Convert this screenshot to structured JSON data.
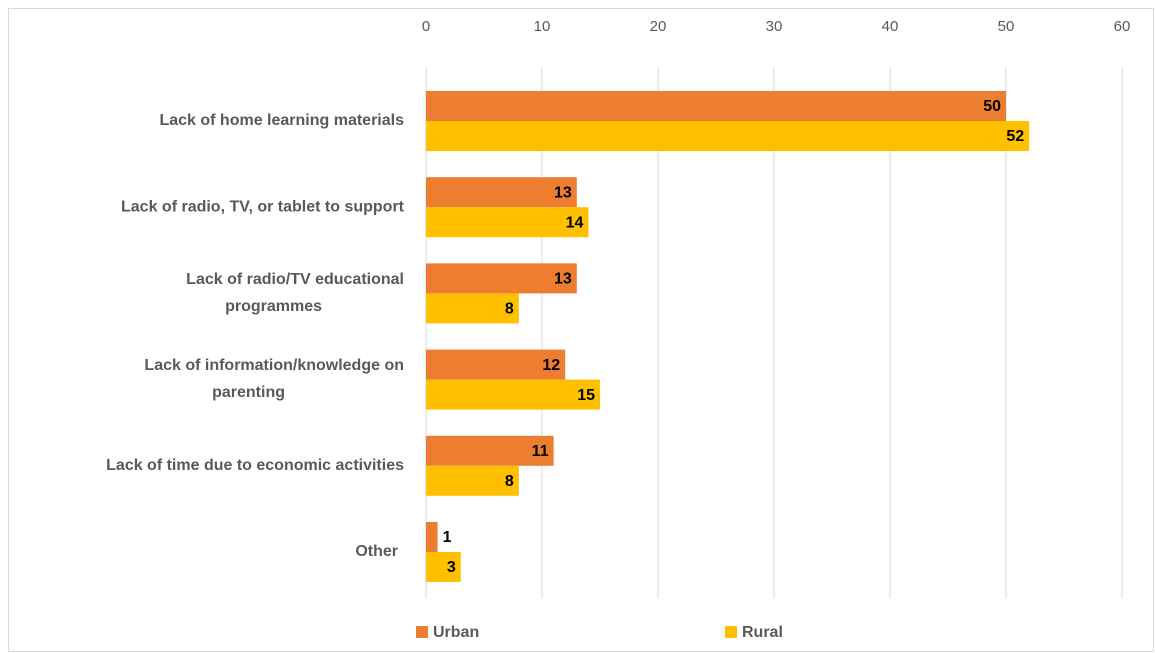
{
  "chart_data": {
    "type": "bar",
    "orientation": "horizontal",
    "categories": [
      "Lack of home learning materials",
      "Lack of radio, TV, or tablet to support",
      "Lack of radio/TV educational programmes",
      "Lack of information/knowledge on parenting",
      "Lack of time due to economic activities",
      "Other"
    ],
    "series": [
      {
        "name": "Urban",
        "color": "#ED7D31",
        "values": [
          50,
          13,
          13,
          12,
          11,
          1
        ]
      },
      {
        "name": "Rural",
        "color": "#FFC000",
        "values": [
          52,
          14,
          8,
          15,
          8,
          3
        ]
      }
    ],
    "xlim": [
      0,
      60
    ],
    "xticks": [
      0,
      10,
      20,
      30,
      40,
      50,
      60
    ],
    "x_axis_position": "top",
    "grid": true,
    "data_labels": true,
    "legend_position": "bottom",
    "title": "",
    "xlabel": "",
    "ylabel": ""
  }
}
